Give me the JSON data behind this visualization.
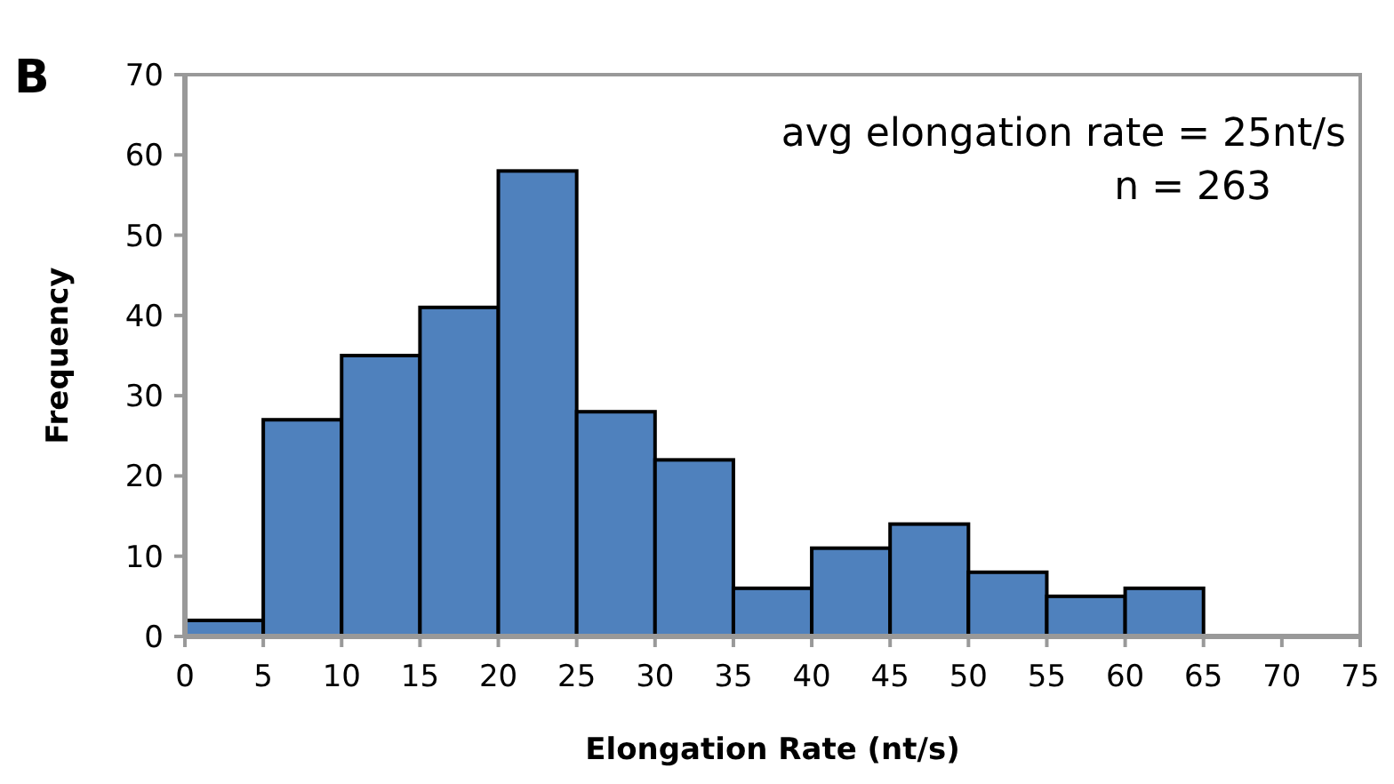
{
  "chart_data": {
    "type": "histogram",
    "xlabel": "Elongation Rate (nt/s)",
    "ylabel": "Frequency",
    "bins": [
      0,
      5,
      10,
      15,
      20,
      25,
      30,
      35,
      40,
      45,
      50,
      55,
      60,
      65,
      70,
      75
    ],
    "values": [
      2,
      27,
      35,
      41,
      58,
      28,
      22,
      6,
      11,
      14,
      8,
      5,
      6,
      0,
      0
    ],
    "color": "#4f81bd",
    "xlim": [
      0,
      75
    ],
    "xticks": [
      0,
      5,
      10,
      15,
      20,
      25,
      30,
      35,
      40,
      45,
      50,
      55,
      60,
      65,
      70,
      75
    ],
    "ylim": [
      0,
      70
    ],
    "yticks": [
      0,
      10,
      20,
      30,
      40,
      50,
      60,
      70
    ],
    "grid": false,
    "annotations": [
      "B",
      "avg elongation rate = 25nt/s",
      "n = 263"
    ]
  }
}
